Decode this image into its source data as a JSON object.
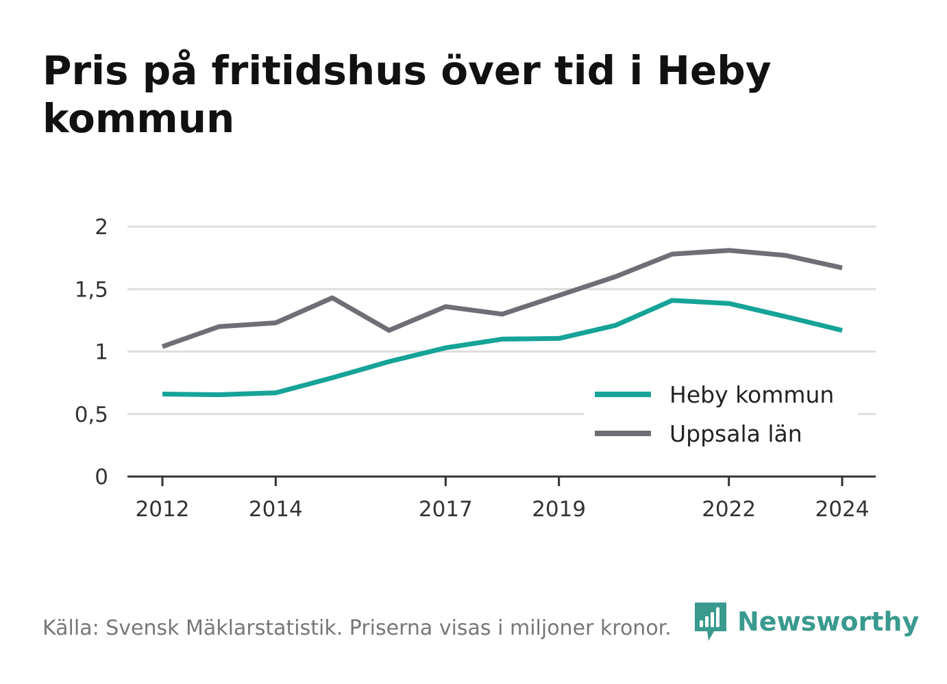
{
  "title": "Pris på fritidshus över tid i Heby kommun",
  "footer": "Källa: Svensk Mäklarstatistik. Priserna visas i miljoner kronor.",
  "brand": {
    "name": "Newsworthy",
    "icon": "bar-chart-speech-bubble-icon",
    "color": "#3a9a8e"
  },
  "chart_data": {
    "type": "line",
    "title": "Pris på fritidshus över tid i Heby kommun",
    "xlabel": "",
    "ylabel": "",
    "x": [
      2012,
      2013,
      2014,
      2015,
      2016,
      2017,
      2018,
      2019,
      2020,
      2021,
      2022,
      2023,
      2024
    ],
    "x_ticks": [
      "2012",
      "2014",
      "2017",
      "2019",
      "2022",
      "2024"
    ],
    "y_ticks": [
      "0",
      "0,5",
      "1",
      "1,5",
      "2"
    ],
    "ylim": [
      0,
      2
    ],
    "grid": true,
    "legend_position": "bottom-right",
    "series": [
      {
        "name": "Heby kommun",
        "color": "#16a398",
        "values": [
          0.66,
          0.655,
          0.67,
          0.79,
          0.92,
          1.03,
          1.1,
          1.105,
          1.21,
          1.41,
          1.385,
          1.28,
          1.17
        ]
      },
      {
        "name": "Uppsala län",
        "color": "#6f6e75",
        "values": [
          1.04,
          1.2,
          1.23,
          1.43,
          1.17,
          1.36,
          1.3,
          1.45,
          1.6,
          1.78,
          1.81,
          1.77,
          1.67
        ]
      }
    ]
  }
}
